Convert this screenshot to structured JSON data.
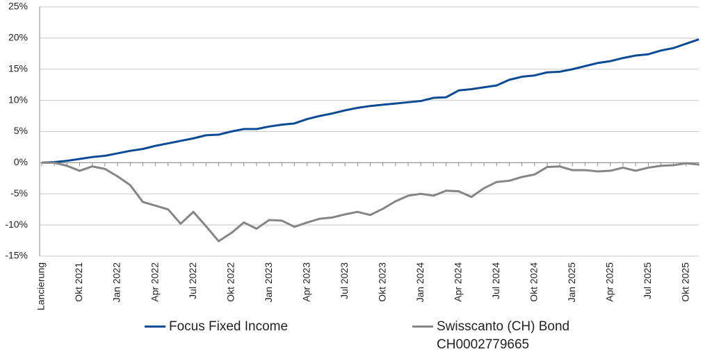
{
  "chart_data": {
    "type": "line",
    "categories": [
      "Lancierung",
      null,
      null,
      "Okt 2021",
      null,
      null,
      "Jan 2022",
      null,
      null,
      "Apr 2022",
      null,
      null,
      "Jul 2022",
      null,
      null,
      "Okt 2022",
      null,
      null,
      "Jan 2023",
      null,
      null,
      "Apr 2023",
      null,
      null,
      "Jul 2023",
      null,
      null,
      "Okt 2023",
      null,
      null,
      "Jan 2024",
      null,
      null,
      "Apr 2024",
      null,
      null,
      "Jul 2024",
      null,
      null,
      "Okt 2024",
      null,
      null,
      "Jan 2025",
      null,
      null,
      "Apr 2025",
      null,
      null,
      "Jul 2025",
      null,
      null,
      "Okt 2025",
      null
    ],
    "series": [
      {
        "name": "Focus Fixed Income",
        "color": "#0b4a94",
        "values": [
          0,
          0.1,
          0.3,
          0.6,
          0.9,
          1.1,
          1.5,
          1.9,
          2.2,
          2.7,
          3.1,
          3.5,
          3.9,
          4.4,
          4.5,
          5.0,
          5.4,
          5.4,
          5.8,
          6.1,
          6.3,
          7.0,
          7.5,
          7.9,
          8.4,
          8.8,
          9.1,
          9.3,
          9.5,
          9.7,
          9.9,
          10.4,
          10.5,
          11.6,
          11.8,
          12.1,
          12.4,
          13.3,
          13.8,
          14.0,
          14.5,
          14.6,
          15.0,
          15.5,
          16.0,
          16.3,
          16.8,
          17.2,
          17.4,
          18.0,
          18.4,
          19.1,
          19.8
        ]
      },
      {
        "name": "Swisscanto (CH) Bond CH0002779665",
        "color": "#858585",
        "values": [
          0,
          0.0,
          -0.5,
          -1.3,
          -0.6,
          -1.0,
          -2.2,
          -3.6,
          -6.3,
          -6.9,
          -7.5,
          -9.8,
          -7.9,
          -10.2,
          -12.6,
          -11.3,
          -9.6,
          -10.6,
          -9.2,
          -9.3,
          -10.3,
          -9.6,
          -9.0,
          -8.8,
          -8.3,
          -7.9,
          -8.4,
          -7.4,
          -6.2,
          -5.3,
          -5.0,
          -5.3,
          -4.5,
          -4.6,
          -5.5,
          -4.1,
          -3.1,
          -2.9,
          -2.3,
          -1.9,
          -0.7,
          -0.6,
          -1.2,
          -1.2,
          -1.4,
          -1.3,
          -0.8,
          -1.3,
          -0.8,
          -0.5,
          -0.4,
          -0.1,
          -0.3
        ]
      }
    ],
    "ylim": [
      -15,
      25
    ],
    "yticks": [
      {
        "value": -15,
        "label": "-15%"
      },
      {
        "value": -10,
        "label": "-10%"
      },
      {
        "value": -5,
        "label": "-5%"
      },
      {
        "value": 0,
        "label": "0%"
      },
      {
        "value": 5,
        "label": "5%"
      },
      {
        "value": 10,
        "label": "10%"
      },
      {
        "value": 15,
        "label": "15%"
      },
      {
        "value": 20,
        "label": "20%"
      },
      {
        "value": 25,
        "label": "25%"
      }
    ],
    "grid": true,
    "legend": "bottom"
  }
}
